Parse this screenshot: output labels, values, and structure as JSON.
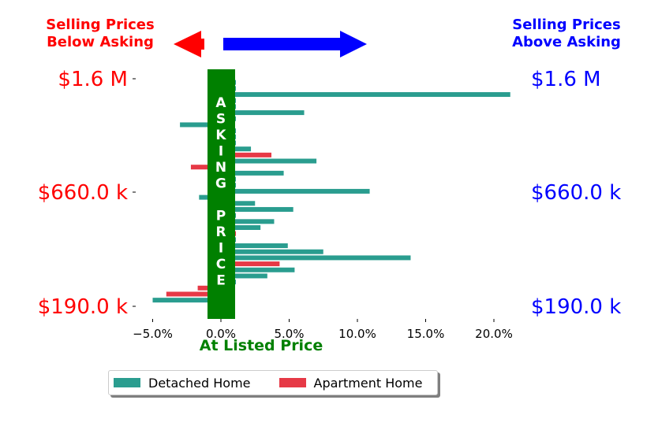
{
  "header": {
    "left_line1": "Selling Prices",
    "left_line2": "Below Asking",
    "right_line1": "Selling Prices",
    "right_line2": "Above Asking"
  },
  "colors": {
    "detached": "#2a9d8f",
    "apartment": "#e63946",
    "below": "#ff0000",
    "above": "#0000ff",
    "asking_band": "#008000"
  },
  "chart_data": {
    "type": "bar",
    "orientation": "horizontal",
    "xlabel": "At Listed Price",
    "band_label": [
      "A",
      "S",
      "K",
      "I",
      "N",
      "G",
      "",
      "P",
      "R",
      "I",
      "C",
      "E"
    ],
    "xlim": [
      -0.065,
      0.22
    ],
    "xticks": [
      -0.05,
      0.0,
      0.05,
      0.1,
      0.15,
      0.2
    ],
    "xtick_labels": [
      "−5.0%",
      "0.0%",
      "5.0%",
      "10.0%",
      "15.0%",
      "20.0%"
    ],
    "left_ticks": [
      "$1.6 M",
      "$660.0 k",
      "$190.0 k"
    ],
    "right_ticks": [
      "$1.6 M",
      "$660.0 k",
      "$190.0 k"
    ],
    "series": [
      {
        "name": "Detached Home",
        "points": [
          {
            "idx": 1,
            "value": 0.011
          },
          {
            "idx": 2,
            "value": 0.011
          },
          {
            "idx": 3,
            "value": 0.212
          },
          {
            "idx": 4,
            "value": 0.011
          },
          {
            "idx": 5,
            "value": 0.011
          },
          {
            "idx": 6,
            "value": 0.061
          },
          {
            "idx": 7,
            "value": 0.011
          },
          {
            "idx": 8,
            "value": -0.03
          },
          {
            "idx": 9,
            "value": 0.011
          },
          {
            "idx": 10,
            "value": 0.011
          },
          {
            "idx": 11,
            "value": 0.011
          },
          {
            "idx": 12,
            "value": 0.022
          },
          {
            "idx": 14,
            "value": 0.07
          },
          {
            "idx": 16,
            "value": 0.046
          },
          {
            "idx": 17,
            "value": 0.011
          },
          {
            "idx": 18,
            "value": 0.011
          },
          {
            "idx": 19,
            "value": 0.109
          },
          {
            "idx": 20,
            "value": -0.016
          },
          {
            "idx": 21,
            "value": 0.025
          },
          {
            "idx": 22,
            "value": 0.053
          },
          {
            "idx": 23,
            "value": 0.011
          },
          {
            "idx": 24,
            "value": 0.039
          },
          {
            "idx": 25,
            "value": 0.029
          },
          {
            "idx": 27,
            "value": 0.011
          },
          {
            "idx": 28,
            "value": 0.049
          },
          {
            "idx": 29,
            "value": 0.075
          },
          {
            "idx": 30,
            "value": 0.139
          },
          {
            "idx": 32,
            "value": 0.054
          },
          {
            "idx": 33,
            "value": 0.034
          },
          {
            "idx": 34,
            "value": 0.011
          },
          {
            "idx": 37,
            "value": -0.05
          }
        ]
      },
      {
        "name": "Apartment Home",
        "points": [
          {
            "idx": 13,
            "value": 0.037
          },
          {
            "idx": 15,
            "value": -0.022
          },
          {
            "idx": 26,
            "value": 0.011
          },
          {
            "idx": 31,
            "value": 0.043
          },
          {
            "idx": 35,
            "value": -0.017
          },
          {
            "idx": 36,
            "value": -0.04
          }
        ]
      }
    ]
  },
  "legend": {
    "detached_label": "Detached Home",
    "apartment_label": "Apartment Home"
  }
}
